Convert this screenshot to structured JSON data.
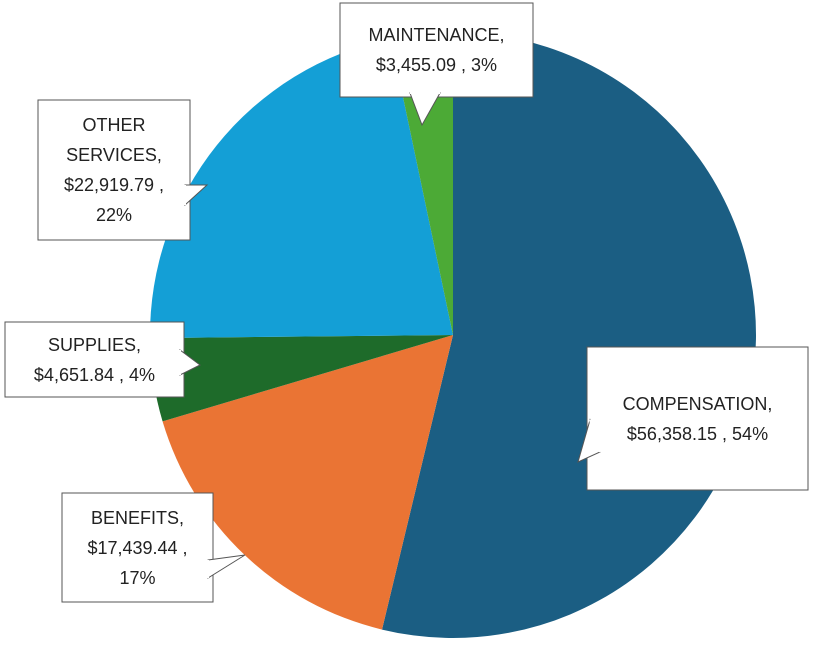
{
  "chart_data": {
    "type": "pie",
    "categories": [
      "COMPENSATION",
      "BENEFITS",
      "SUPPLIES",
      "OTHER SERVICES",
      "MAINTENANCE"
    ],
    "values": [
      56358.15,
      17439.44,
      4651.84,
      22919.79,
      3455.09
    ],
    "value_labels": [
      "$56,358.15",
      "$17,439.44",
      "$4,651.84",
      "$22,919.79",
      "$3,455.09"
    ],
    "percent_labels": [
      "54%",
      "17%",
      "4%",
      "22%",
      "3%"
    ],
    "label_separator": ",",
    "colors": [
      "#1b5e83",
      "#ea7434",
      "#1e6b2a",
      "#149fd6",
      "#4caa36"
    ]
  }
}
